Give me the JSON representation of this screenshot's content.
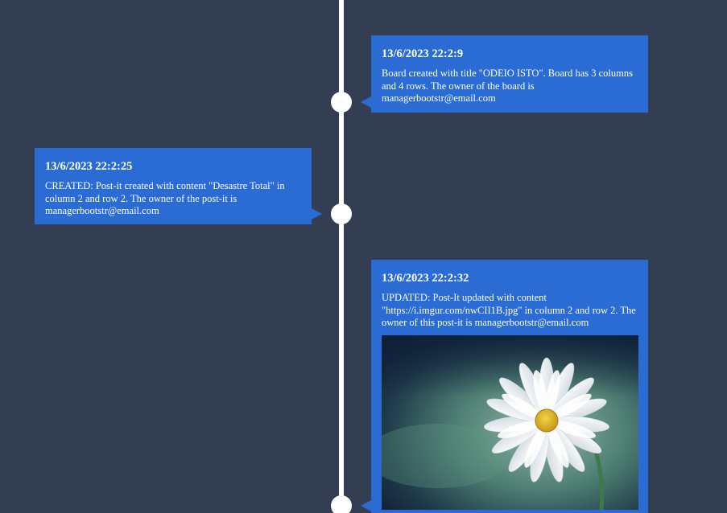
{
  "timeline": {
    "events": [
      {
        "timestamp": "13/6/2023 22:2:9",
        "message": "Board created with title \"ODEIO ISTO\". Board has 3 columns and 4 rows. The owner of the board is managerbootstr@email.com",
        "side": "right"
      },
      {
        "timestamp": "13/6/2023 22:2:25",
        "message": "CREATED: Post-it created with content \"Desastre Total\" in column 2 and row 2. The owner of the post-it is managerbootstr@email.com",
        "side": "left"
      },
      {
        "timestamp": "13/6/2023 22:2:32",
        "message": "UPDATED: Post-It updated with content \"https://i.imgur.com/nwCII1B.jpg\" in column 2 and row 2. The owner of this post-it is managerbootstr@email.com",
        "side": "right",
        "image": "daisy-photo"
      }
    ]
  },
  "colors": {
    "background": "#343e52",
    "card": "#2b6bd4",
    "line": "#ffffff"
  }
}
